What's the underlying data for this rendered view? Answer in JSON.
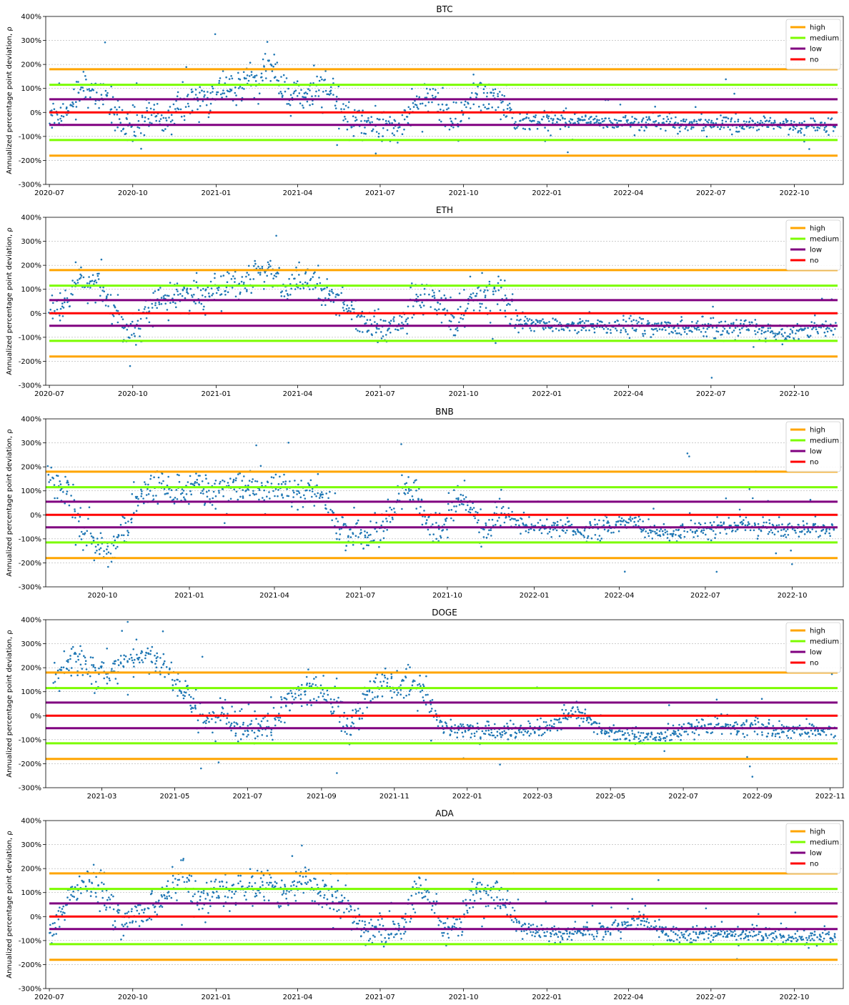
{
  "figure": {
    "y_axis_label": "Annualized percentage point deviation, ρ",
    "ytick_labels": [
      "400%",
      "300%",
      "200%",
      "100%",
      "0%",
      "-100%",
      "-200%",
      "-300%"
    ],
    "ylim": [
      -300,
      400
    ],
    "grid": "horizontal dotted"
  },
  "chart_data": [
    {
      "type": "scatter",
      "title": "BTC",
      "ylabel": "Annualized percentage point deviation, ρ",
      "xlim": [
        "2020-06-27",
        "2022-11-24"
      ],
      "ylim": [
        -300,
        400
      ],
      "xticks": [
        "2020-07",
        "2020-10",
        "2021-01",
        "2021-04",
        "2021-07",
        "2021-10",
        "2022-01",
        "2022-04",
        "2022-07",
        "2022-10"
      ],
      "xtick_dates": [
        "2020-07-01",
        "2020-10-01",
        "2021-01-01",
        "2021-04-01",
        "2021-07-01",
        "2021-10-01",
        "2022-01-01",
        "2022-04-01",
        "2022-07-01",
        "2022-10-01"
      ],
      "yticks": [
        400,
        300,
        200,
        100,
        0,
        -100,
        -200,
        -300
      ],
      "ytick_labels": [
        "400%",
        "300%",
        "200%",
        "100%",
        "0%",
        "-100%",
        "-200%",
        "-300%"
      ],
      "legend": {
        "placement": "top-right",
        "entries": [
          "high",
          "medium",
          "low",
          "no"
        ]
      },
      "thresholds": [
        {
          "name": "high",
          "values": [
            180,
            -180
          ],
          "color": "#ffa500"
        },
        {
          "name": "medium",
          "values": [
            115,
            -115
          ],
          "color": "#7cfc00"
        },
        {
          "name": "low",
          "values": [
            55,
            -52
          ],
          "color": "#800080"
        },
        {
          "name": "no",
          "values": [
            0
          ],
          "color": "#ff0000"
        }
      ],
      "scatter_color": "#1f77b4",
      "series": [
        {
          "x": [
            "2020-07-01",
            "2020-07-20",
            "2020-08-05",
            "2020-08-25",
            "2020-09-05",
            "2020-09-20",
            "2020-10-05",
            "2020-10-20",
            "2020-11-05",
            "2020-11-25",
            "2020-12-15",
            "2021-01-05",
            "2021-01-25",
            "2021-02-15",
            "2021-03-01",
            "2021-03-20",
            "2021-04-05",
            "2021-04-25",
            "2021-05-10",
            "2021-05-25",
            "2021-06-10",
            "2021-06-25",
            "2021-07-10",
            "2021-07-25",
            "2021-08-10",
            "2021-08-25",
            "2021-09-10",
            "2021-09-25",
            "2021-10-10",
            "2021-10-25",
            "2021-11-10",
            "2021-11-30",
            "2021-12-15",
            "2022-01-15",
            "2022-02-15",
            "2022-03-15",
            "2022-04-15",
            "2022-05-15",
            "2022-06-15",
            "2022-07-15",
            "2022-08-15",
            "2022-09-15",
            "2022-10-15",
            "2022-11-15"
          ],
          "y": [
            -10,
            5,
            110,
            80,
            40,
            -55,
            -60,
            -10,
            -50,
            60,
            40,
            100,
            110,
            150,
            170,
            80,
            70,
            100,
            90,
            -30,
            -40,
            -60,
            -55,
            -65,
            30,
            70,
            20,
            -55,
            70,
            60,
            50,
            -40,
            -35,
            -35,
            -40,
            -40,
            -45,
            -45,
            -45,
            -50,
            -50,
            -55,
            -55,
            -55
          ]
        }
      ]
    },
    {
      "type": "scatter",
      "title": "ETH",
      "ylabel": "Annualized percentage point deviation, ρ",
      "xlim": [
        "2020-06-27",
        "2022-11-24"
      ],
      "ylim": [
        -300,
        400
      ],
      "xticks": [
        "2020-07",
        "2020-10",
        "2021-01",
        "2021-04",
        "2021-07",
        "2021-10",
        "2022-01",
        "2022-04",
        "2022-07",
        "2022-10"
      ],
      "xtick_dates": [
        "2020-07-01",
        "2020-10-01",
        "2021-01-01",
        "2021-04-01",
        "2021-07-01",
        "2021-10-01",
        "2022-01-01",
        "2022-04-01",
        "2022-07-01",
        "2022-10-01"
      ],
      "yticks": [
        400,
        300,
        200,
        100,
        0,
        -100,
        -200,
        -300
      ],
      "ytick_labels": [
        "400%",
        "300%",
        "200%",
        "100%",
        "0%",
        "-100%",
        "-200%",
        "-300%"
      ],
      "legend": {
        "placement": "top-right",
        "entries": [
          "high",
          "medium",
          "low",
          "no"
        ]
      },
      "thresholds": [
        {
          "name": "high",
          "values": [
            180,
            -180
          ],
          "color": "#ffa500"
        },
        {
          "name": "medium",
          "values": [
            115,
            -115
          ],
          "color": "#7cfc00"
        },
        {
          "name": "low",
          "values": [
            55,
            -52
          ],
          "color": "#800080"
        },
        {
          "name": "no",
          "values": [
            0
          ],
          "color": "#ff0000"
        }
      ],
      "scatter_color": "#1f77b4",
      "series": [
        {
          "x": [
            "2020-07-01",
            "2020-07-20",
            "2020-08-05",
            "2020-08-25",
            "2020-09-05",
            "2020-09-20",
            "2020-10-05",
            "2020-10-20",
            "2020-11-05",
            "2020-11-25",
            "2020-12-15",
            "2021-01-05",
            "2021-01-25",
            "2021-02-15",
            "2021-03-01",
            "2021-03-20",
            "2021-04-05",
            "2021-04-25",
            "2021-05-10",
            "2021-05-25",
            "2021-06-10",
            "2021-06-25",
            "2021-07-10",
            "2021-07-25",
            "2021-08-10",
            "2021-08-25",
            "2021-09-10",
            "2021-09-25",
            "2021-10-10",
            "2021-10-25",
            "2021-11-10",
            "2021-11-30",
            "2021-12-15",
            "2022-01-15",
            "2022-02-15",
            "2022-03-15",
            "2022-04-15",
            "2022-05-15",
            "2022-06-15",
            "2022-07-15",
            "2022-08-15",
            "2022-09-15",
            "2022-10-15",
            "2022-11-15"
          ],
          "y": [
            20,
            30,
            140,
            120,
            60,
            -50,
            -60,
            20,
            60,
            80,
            60,
            120,
            110,
            160,
            170,
            100,
            120,
            110,
            80,
            40,
            -30,
            -50,
            -60,
            -40,
            60,
            70,
            10,
            -60,
            80,
            80,
            60,
            -30,
            -40,
            -50,
            -55,
            -55,
            -55,
            -60,
            -60,
            -65,
            -60,
            -80,
            -65,
            -60
          ]
        }
      ]
    },
    {
      "type": "scatter",
      "title": "BNB",
      "ylabel": "Annualized percentage point deviation, ρ",
      "xlim": [
        "2020-08-02",
        "2022-11-24"
      ],
      "ylim": [
        -300,
        400
      ],
      "xticks": [
        "2020-10",
        "2021-01",
        "2021-04",
        "2021-07",
        "2021-10",
        "2022-01",
        "2022-04",
        "2022-07",
        "2022-10"
      ],
      "xtick_dates": [
        "2020-10-01",
        "2021-01-01",
        "2021-04-01",
        "2021-07-01",
        "2021-10-01",
        "2022-01-01",
        "2022-04-01",
        "2022-07-01",
        "2022-10-01"
      ],
      "yticks": [
        400,
        300,
        200,
        100,
        0,
        -100,
        -200,
        -300
      ],
      "ytick_labels": [
        "400%",
        "300%",
        "200%",
        "100%",
        "0%",
        "-100%",
        "-200%",
        "-300%"
      ],
      "legend": {
        "placement": "top-right",
        "entries": [
          "high",
          "medium",
          "low",
          "no"
        ]
      },
      "thresholds": [
        {
          "name": "high",
          "values": [
            180,
            -180
          ],
          "color": "#ffa500"
        },
        {
          "name": "medium",
          "values": [
            115,
            -115
          ],
          "color": "#7cfc00"
        },
        {
          "name": "low",
          "values": [
            55,
            -52
          ],
          "color": "#800080"
        },
        {
          "name": "no",
          "values": [
            0
          ],
          "color": "#ff0000"
        }
      ],
      "scatter_color": "#1f77b4",
      "series": [
        {
          "x": [
            "2020-08-05",
            "2020-08-25",
            "2020-09-10",
            "2020-09-25",
            "2020-10-10",
            "2020-10-25",
            "2020-11-10",
            "2020-11-25",
            "2020-12-15",
            "2021-01-05",
            "2021-01-25",
            "2021-02-15",
            "2021-03-01",
            "2021-03-20",
            "2021-04-05",
            "2021-04-25",
            "2021-05-10",
            "2021-05-25",
            "2021-06-10",
            "2021-06-25",
            "2021-07-10",
            "2021-07-25",
            "2021-08-10",
            "2021-08-25",
            "2021-09-10",
            "2021-09-25",
            "2021-10-10",
            "2021-10-25",
            "2021-11-10",
            "2021-11-30",
            "2021-12-15",
            "2022-01-15",
            "2022-02-15",
            "2022-03-15",
            "2022-04-15",
            "2022-05-15",
            "2022-06-15",
            "2022-07-15",
            "2022-08-15",
            "2022-09-15",
            "2022-10-15",
            "2022-11-15"
          ],
          "y": [
            150,
            120,
            -60,
            -120,
            -150,
            -60,
            80,
            120,
            100,
            130,
            90,
            120,
            110,
            90,
            120,
            100,
            110,
            60,
            -60,
            -80,
            -90,
            -40,
            80,
            110,
            -40,
            -80,
            60,
            40,
            -60,
            20,
            -40,
            -50,
            -60,
            -60,
            -30,
            -80,
            -70,
            -40,
            -50,
            -60,
            -60,
            -50
          ]
        }
      ]
    },
    {
      "type": "scatter",
      "title": "DOGE",
      "ylabel": "Annualized percentage point deviation, ρ",
      "xlim": [
        "2021-01-13",
        "2022-11-12"
      ],
      "ylim": [
        -300,
        400
      ],
      "xticks": [
        "2021-03",
        "2021-05",
        "2021-07",
        "2021-09",
        "2021-11",
        "2022-01",
        "2022-03",
        "2022-05",
        "2022-07",
        "2022-09",
        "2022-11"
      ],
      "xtick_dates": [
        "2021-03-01",
        "2021-05-01",
        "2021-07-01",
        "2021-09-01",
        "2021-11-01",
        "2022-01-01",
        "2022-03-01",
        "2022-05-01",
        "2022-07-01",
        "2022-09-01",
        "2022-11-01"
      ],
      "yticks": [
        400,
        300,
        200,
        100,
        0,
        -100,
        -200,
        -300
      ],
      "ytick_labels": [
        "400%",
        "300%",
        "200%",
        "100%",
        "0%",
        "-100%",
        "-200%",
        "-300%"
      ],
      "legend": {
        "placement": "top-right",
        "entries": [
          "high",
          "medium",
          "low",
          "no"
        ]
      },
      "thresholds": [
        {
          "name": "high",
          "values": [
            180,
            -180
          ],
          "color": "#ffa500"
        },
        {
          "name": "medium",
          "values": [
            115,
            -115
          ],
          "color": "#7cfc00"
        },
        {
          "name": "low",
          "values": [
            55,
            -52
          ],
          "color": "#800080"
        },
        {
          "name": "no",
          "values": [
            0
          ],
          "color": "#ff0000"
        }
      ],
      "scatter_color": "#1f77b4",
      "series": [
        {
          "x": [
            "2021-01-20",
            "2021-02-05",
            "2021-02-20",
            "2021-03-10",
            "2021-03-25",
            "2021-04-10",
            "2021-04-25",
            "2021-05-10",
            "2021-05-25",
            "2021-06-10",
            "2021-06-25",
            "2021-07-10",
            "2021-07-25",
            "2021-08-10",
            "2021-08-25",
            "2021-09-10",
            "2021-09-25",
            "2021-10-10",
            "2021-10-25",
            "2021-11-10",
            "2021-11-25",
            "2021-12-10",
            "2021-12-25",
            "2022-01-15",
            "2022-02-10",
            "2022-03-10",
            "2022-04-05",
            "2022-04-25",
            "2022-05-15",
            "2022-06-10",
            "2022-07-10",
            "2022-08-10",
            "2022-09-10",
            "2022-10-10",
            "2022-11-05"
          ],
          "y": [
            150,
            250,
            180,
            200,
            230,
            250,
            180,
            100,
            -40,
            20,
            -60,
            -40,
            -20,
            100,
            120,
            60,
            -60,
            100,
            130,
            120,
            110,
            -40,
            -50,
            -60,
            -60,
            -50,
            20,
            -60,
            -80,
            -90,
            -50,
            -40,
            -60,
            -60,
            -60
          ]
        }
      ]
    },
    {
      "type": "scatter",
      "title": "ADA",
      "ylabel": "Annualized percentage point deviation, ρ",
      "xlim": [
        "2020-06-27",
        "2022-11-24"
      ],
      "ylim": [
        -300,
        400
      ],
      "xticks": [
        "2020-07",
        "2020-10",
        "2021-01",
        "2021-04",
        "2021-07",
        "2021-10",
        "2022-01",
        "2022-04",
        "2022-07",
        "2022-10"
      ],
      "xtick_dates": [
        "2020-07-01",
        "2020-10-01",
        "2021-01-01",
        "2021-04-01",
        "2021-07-01",
        "2021-10-01",
        "2022-01-01",
        "2022-04-01",
        "2022-07-01",
        "2022-10-01"
      ],
      "yticks": [
        400,
        300,
        200,
        100,
        0,
        -100,
        -200,
        -300
      ],
      "ytick_labels": [
        "400%",
        "300%",
        "200%",
        "100%",
        "0%",
        "-100%",
        "-200%",
        "-300%"
      ],
      "legend": {
        "placement": "top-right",
        "entries": [
          "high",
          "medium",
          "low",
          "no"
        ]
      },
      "thresholds": [
        {
          "name": "high",
          "values": [
            180,
            -180
          ],
          "color": "#ffa500"
        },
        {
          "name": "medium",
          "values": [
            115,
            -115
          ],
          "color": "#7cfc00"
        },
        {
          "name": "low",
          "values": [
            55,
            -52
          ],
          "color": "#800080"
        },
        {
          "name": "no",
          "values": [
            0
          ],
          "color": "#ff0000"
        }
      ],
      "scatter_color": "#1f77b4",
      "series": [
        {
          "x": [
            "2020-07-01",
            "2020-07-20",
            "2020-08-05",
            "2020-08-25",
            "2020-09-05",
            "2020-09-20",
            "2020-10-05",
            "2020-10-20",
            "2020-11-05",
            "2020-11-25",
            "2020-12-15",
            "2021-01-05",
            "2021-01-25",
            "2021-02-15",
            "2021-03-01",
            "2021-03-20",
            "2021-04-05",
            "2021-04-25",
            "2021-05-10",
            "2021-05-25",
            "2021-06-10",
            "2021-06-25",
            "2021-07-10",
            "2021-07-25",
            "2021-08-10",
            "2021-08-25",
            "2021-09-10",
            "2021-09-25",
            "2021-10-10",
            "2021-10-25",
            "2021-11-10",
            "2021-11-30",
            "2021-12-15",
            "2022-01-15",
            "2022-02-15",
            "2022-03-15",
            "2022-04-15",
            "2022-05-15",
            "2022-06-15",
            "2022-07-15",
            "2022-08-15",
            "2022-09-15",
            "2022-10-15",
            "2022-11-15"
          ],
          "y": [
            -100,
            50,
            150,
            120,
            40,
            -20,
            0,
            40,
            80,
            160,
            60,
            100,
            120,
            150,
            140,
            80,
            160,
            120,
            100,
            60,
            -40,
            -60,
            -60,
            -50,
            100,
            100,
            -40,
            -60,
            110,
            100,
            80,
            -40,
            -60,
            -70,
            -60,
            -50,
            0,
            -80,
            -80,
            -70,
            -70,
            -80,
            -90,
            -80
          ]
        }
      ]
    }
  ]
}
